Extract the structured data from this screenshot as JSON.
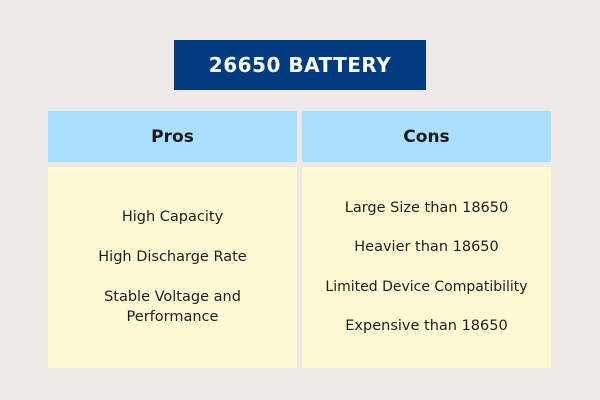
{
  "title": "26650 BATTERY",
  "colors": {
    "title_bg": "#033b80",
    "header_bg": "#a9defc",
    "body_bg": "#fefad3",
    "page_bg": "#efe9e9"
  },
  "pros": {
    "header": "Pros",
    "items": [
      "High Capacity",
      "High Discharge Rate",
      "Stable Voltage and Performance"
    ]
  },
  "cons": {
    "header": "Cons",
    "items": [
      "Large Size than 18650",
      "Heavier than 18650",
      "Limited Device Compatibility",
      "Expensive than 18650"
    ]
  }
}
